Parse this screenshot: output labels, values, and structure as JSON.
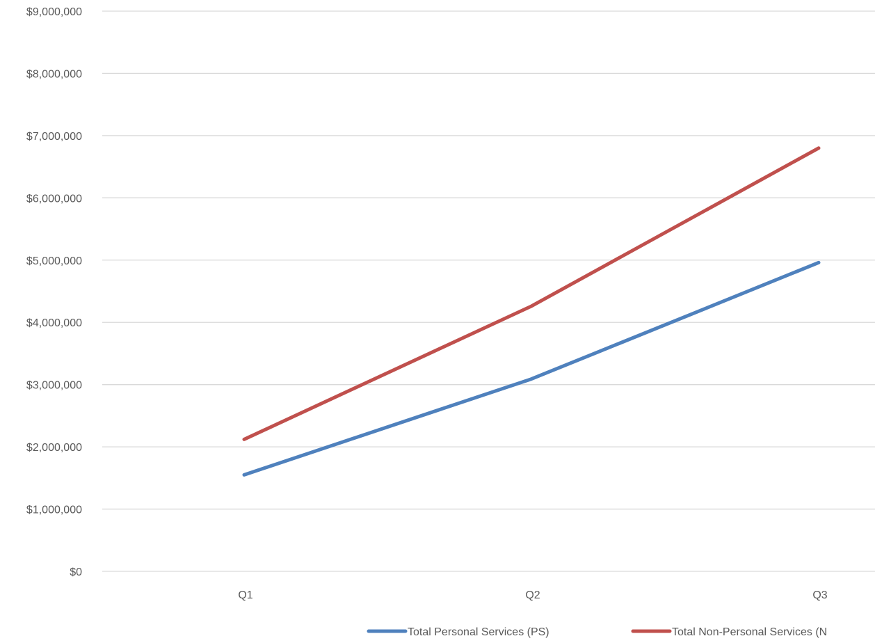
{
  "chart_data": {
    "type": "line",
    "title": "",
    "xlabel": "",
    "ylabel": "",
    "categories": [
      "Q1",
      "Q2",
      "Q3"
    ],
    "ylim": [
      0,
      9000000
    ],
    "yticks": [
      0,
      1000000,
      2000000,
      3000000,
      4000000,
      5000000,
      6000000,
      7000000,
      8000000,
      9000000
    ],
    "ytick_labels": [
      "$0",
      "$1,000,000",
      "$2,000,000",
      "$3,000,000",
      "$4,000,000",
      "$5,000,000",
      "$6,000,000",
      "$7,000,000",
      "$8,000,000",
      "$9,000,000"
    ],
    "grid": true,
    "legend_position": "bottom",
    "series": [
      {
        "name": "Total Personal Services (PS)",
        "legend_label": "Total Personal Services (PS)",
        "color": "#4f81bd",
        "values": [
          1550000,
          3090000,
          4960000
        ]
      },
      {
        "name": "Total Non-Personal Services (NPS)",
        "legend_label": "Total Non-Personal Services (N",
        "color": "#c0504d",
        "values": [
          2120000,
          4260000,
          6800000
        ]
      }
    ]
  }
}
